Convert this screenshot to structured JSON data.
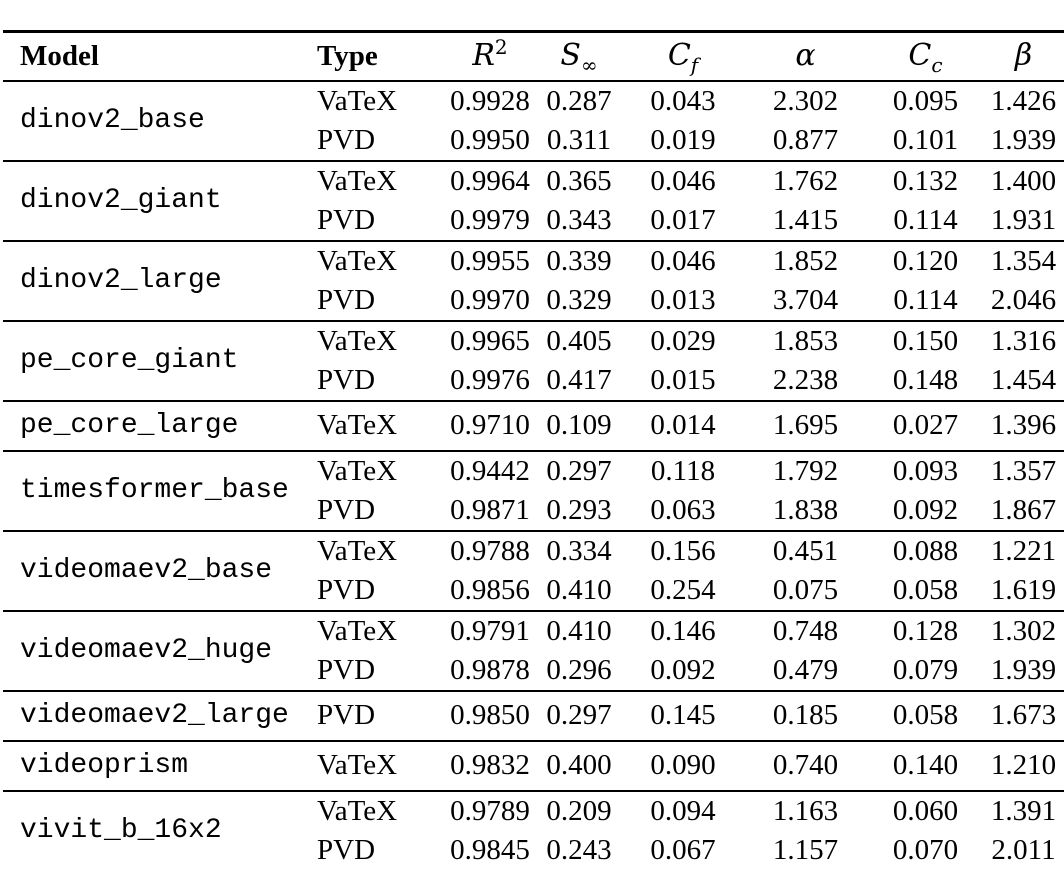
{
  "page": {
    "background": "#ffffff",
    "text_color": "#000000",
    "rule_color": "#000000"
  },
  "table": {
    "columns": [
      {
        "key": "model",
        "label": "Model",
        "align": "left"
      },
      {
        "key": "type",
        "label": "Type",
        "align": "left"
      },
      {
        "key": "r2",
        "base": "R",
        "sup": "2",
        "align": "center"
      },
      {
        "key": "s_inf",
        "base": "S",
        "sub": "∞",
        "align": "center"
      },
      {
        "key": "c_f",
        "base": "C",
        "sub": "f",
        "align": "center"
      },
      {
        "key": "alpha",
        "base": "α",
        "align": "center"
      },
      {
        "key": "c_c",
        "base": "C",
        "sub": "c",
        "align": "center"
      },
      {
        "key": "beta",
        "base": "β",
        "align": "center"
      }
    ],
    "groups": [
      {
        "model": "dinov2_base",
        "rows": [
          {
            "type": "VaTeX",
            "values": [
              "0.9928",
              "0.287",
              "0.043",
              "2.302",
              "0.095",
              "1.426"
            ]
          },
          {
            "type": "PVD",
            "values": [
              "0.9950",
              "0.311",
              "0.019",
              "0.877",
              "0.101",
              "1.939"
            ]
          }
        ]
      },
      {
        "model": "dinov2_giant",
        "rows": [
          {
            "type": "VaTeX",
            "values": [
              "0.9964",
              "0.365",
              "0.046",
              "1.762",
              "0.132",
              "1.400"
            ]
          },
          {
            "type": "PVD",
            "values": [
              "0.9979",
              "0.343",
              "0.017",
              "1.415",
              "0.114",
              "1.931"
            ]
          }
        ]
      },
      {
        "model": "dinov2_large",
        "rows": [
          {
            "type": "VaTeX",
            "values": [
              "0.9955",
              "0.339",
              "0.046",
              "1.852",
              "0.120",
              "1.354"
            ]
          },
          {
            "type": "PVD",
            "values": [
              "0.9970",
              "0.329",
              "0.013",
              "3.704",
              "0.114",
              "2.046"
            ]
          }
        ]
      },
      {
        "model": "pe_core_giant",
        "rows": [
          {
            "type": "VaTeX",
            "values": [
              "0.9965",
              "0.405",
              "0.029",
              "1.853",
              "0.150",
              "1.316"
            ]
          },
          {
            "type": "PVD",
            "values": [
              "0.9976",
              "0.417",
              "0.015",
              "2.238",
              "0.148",
              "1.454"
            ]
          }
        ]
      },
      {
        "model": "pe_core_large",
        "rows": [
          {
            "type": "VaTeX",
            "values": [
              "0.9710",
              "0.109",
              "0.014",
              "1.695",
              "0.027",
              "1.396"
            ]
          }
        ]
      },
      {
        "model": "timesformer_base",
        "rows": [
          {
            "type": "VaTeX",
            "values": [
              "0.9442",
              "0.297",
              "0.118",
              "1.792",
              "0.093",
              "1.357"
            ]
          },
          {
            "type": "PVD",
            "values": [
              "0.9871",
              "0.293",
              "0.063",
              "1.838",
              "0.092",
              "1.867"
            ]
          }
        ]
      },
      {
        "model": "videomaev2_base",
        "rows": [
          {
            "type": "VaTeX",
            "values": [
              "0.9788",
              "0.334",
              "0.156",
              "0.451",
              "0.088",
              "1.221"
            ]
          },
          {
            "type": "PVD",
            "values": [
              "0.9856",
              "0.410",
              "0.254",
              "0.075",
              "0.058",
              "1.619"
            ]
          }
        ]
      },
      {
        "model": "videomaev2_huge",
        "rows": [
          {
            "type": "VaTeX",
            "values": [
              "0.9791",
              "0.410",
              "0.146",
              "0.748",
              "0.128",
              "1.302"
            ]
          },
          {
            "type": "PVD",
            "values": [
              "0.9878",
              "0.296",
              "0.092",
              "0.479",
              "0.079",
              "1.939"
            ]
          }
        ]
      },
      {
        "model": "videomaev2_large",
        "rows": [
          {
            "type": "PVD",
            "values": [
              "0.9850",
              "0.297",
              "0.145",
              "0.185",
              "0.058",
              "1.673"
            ]
          }
        ]
      },
      {
        "model": "videoprism",
        "rows": [
          {
            "type": "VaTeX",
            "values": [
              "0.9832",
              "0.400",
              "0.090",
              "0.740",
              "0.140",
              "1.210"
            ]
          }
        ]
      },
      {
        "model": "vivit_b_16x2",
        "rows": [
          {
            "type": "VaTeX",
            "values": [
              "0.9789",
              "0.209",
              "0.094",
              "1.163",
              "0.060",
              "1.391"
            ]
          },
          {
            "type": "PVD",
            "values": [
              "0.9845",
              "0.243",
              "0.067",
              "1.157",
              "0.070",
              "2.011"
            ]
          }
        ]
      }
    ]
  }
}
